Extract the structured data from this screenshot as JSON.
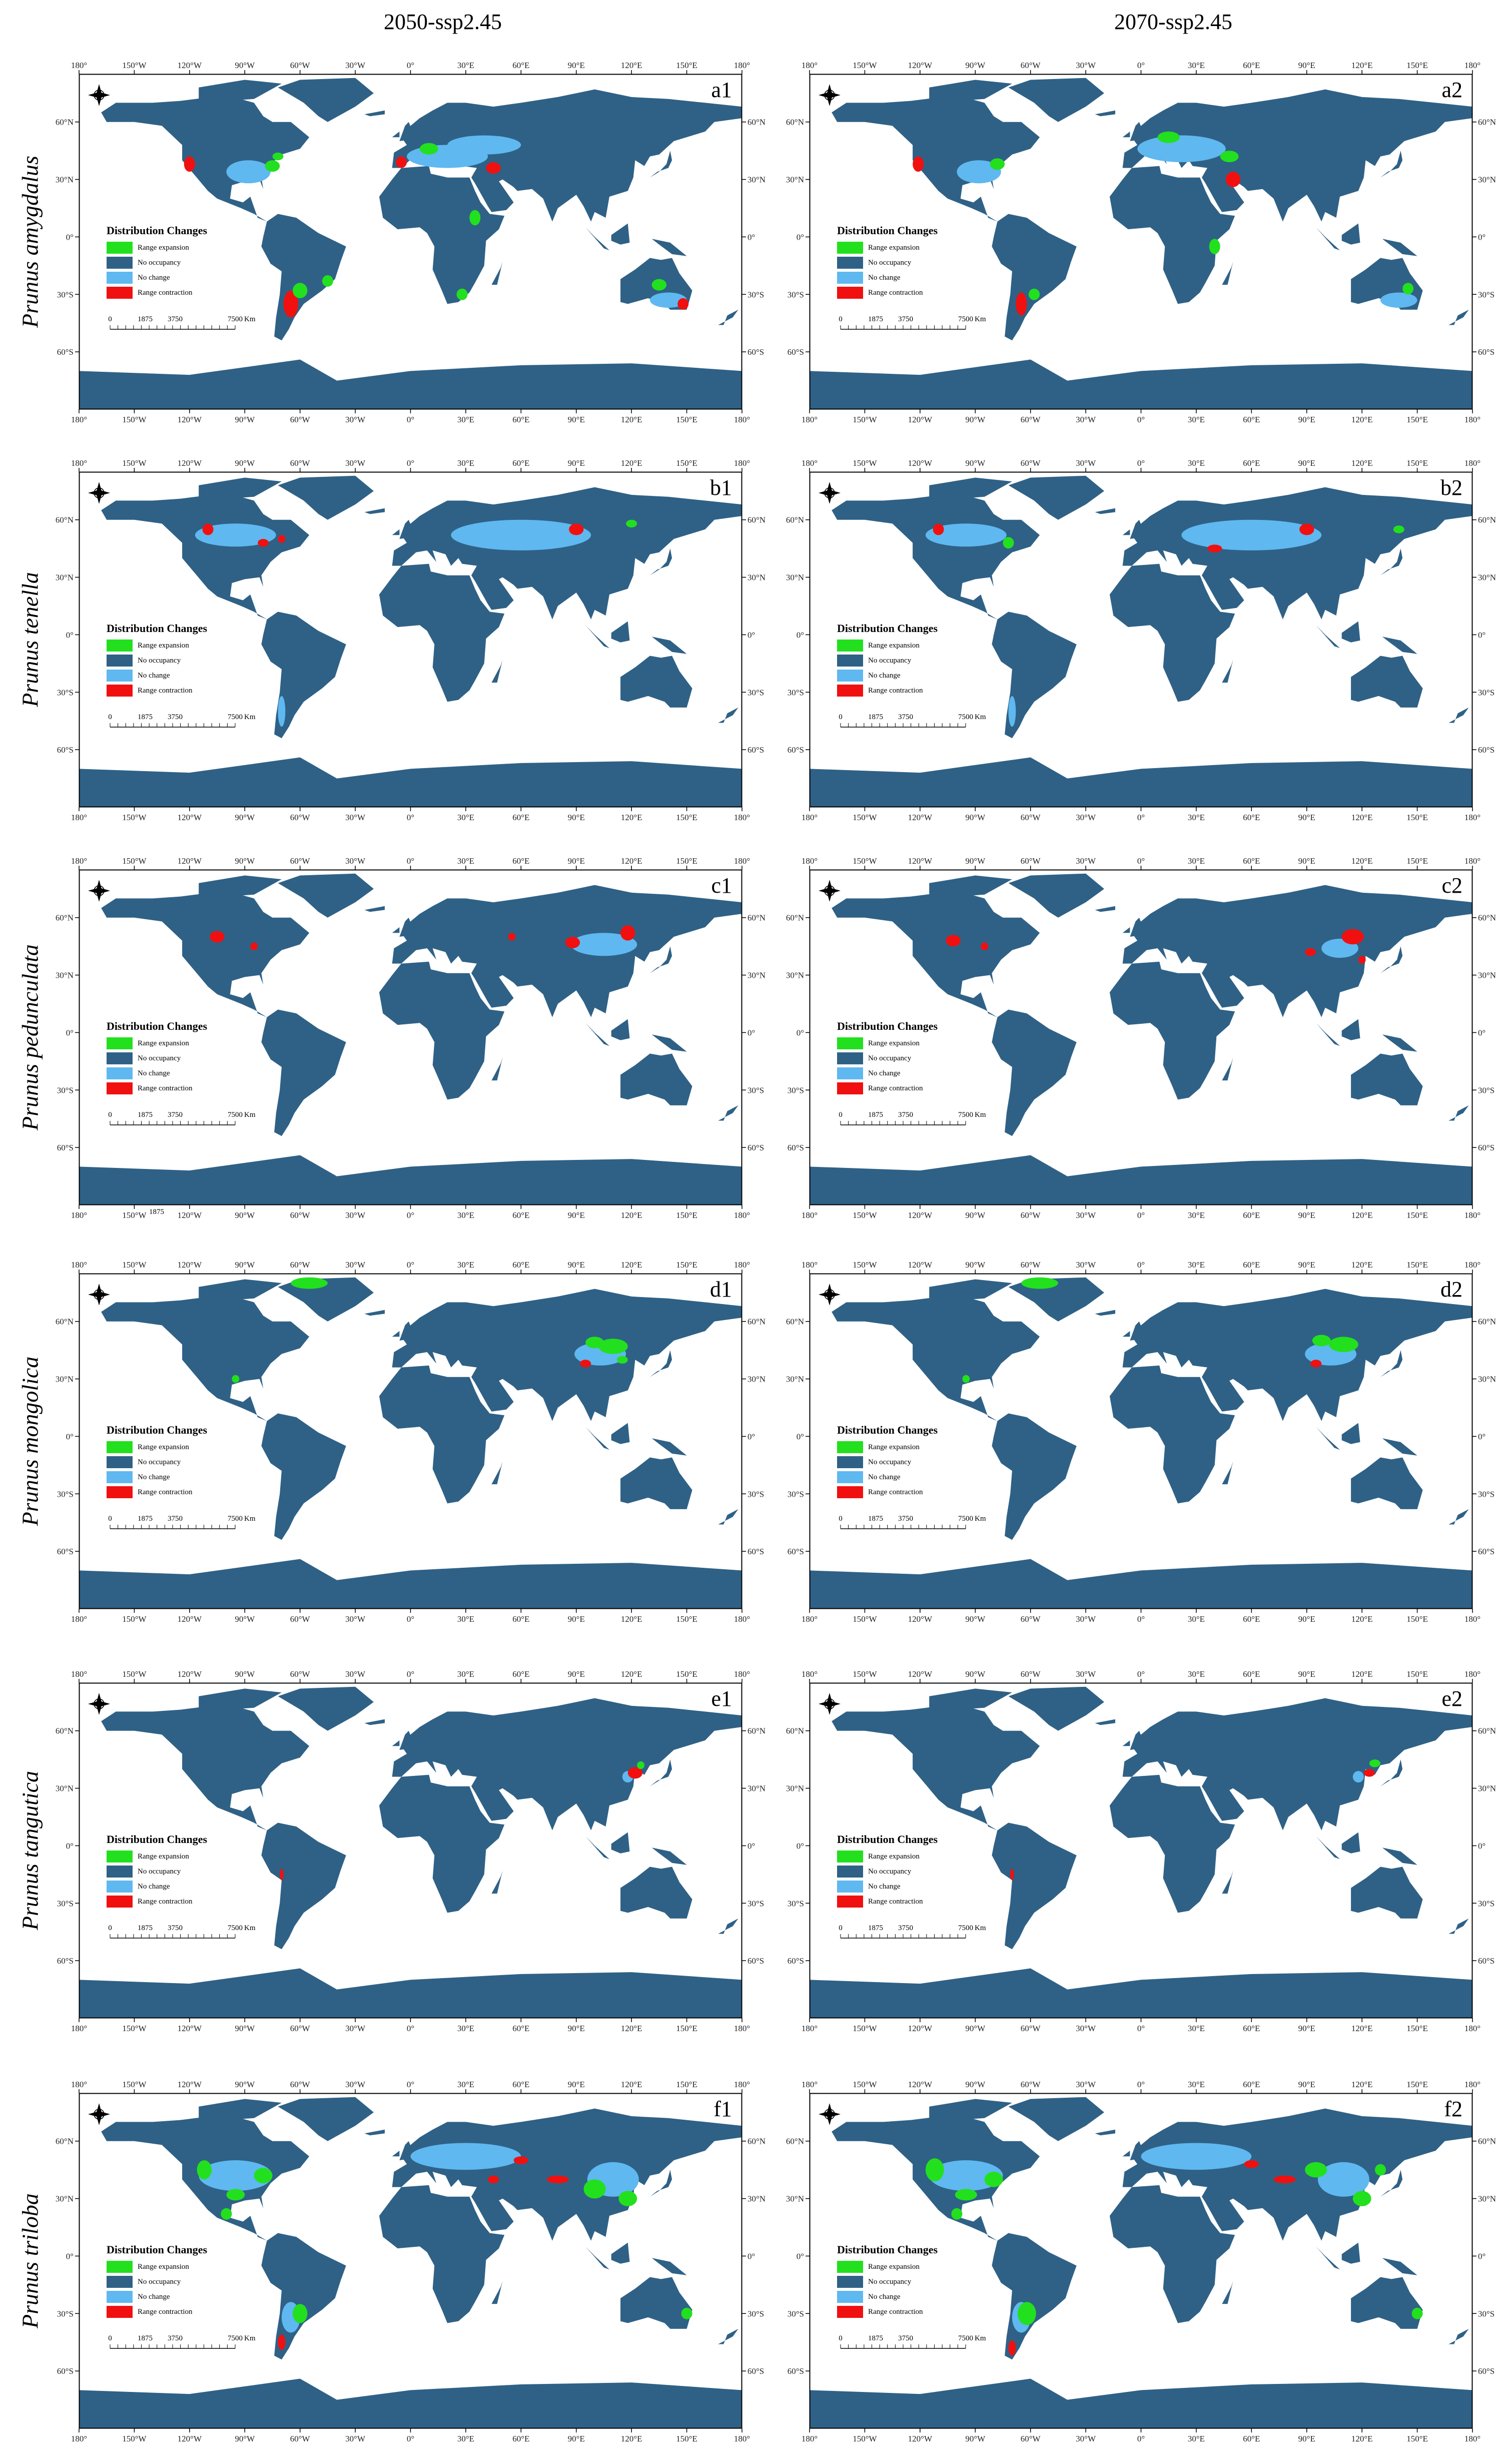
{
  "columns": [
    "2050-ssp2.45",
    "2070-ssp2.45"
  ],
  "rows": [
    {
      "species": "Prunus amygdalus",
      "labels": [
        "a1",
        "a2"
      ]
    },
    {
      "species": "Prunus tenella",
      "labels": [
        "b1",
        "b2"
      ]
    },
    {
      "species": "Prunus pedunculata",
      "labels": [
        "c1",
        "c2"
      ]
    },
    {
      "species": "Prunus mongolica",
      "labels": [
        "d1",
        "d2"
      ]
    },
    {
      "species": "Prunus tangutica",
      "labels": [
        "e1",
        "e2"
      ]
    },
    {
      "species": "Prunus triloba",
      "labels": [
        "f1",
        "f2"
      ]
    }
  ],
  "x_ticks": [
    "180°",
    "150°W",
    "120°W",
    "90°W",
    "60°W",
    "30°W",
    "0°",
    "30°E",
    "60°E",
    "90°E",
    "120°E",
    "150°E",
    "180°"
  ],
  "y_ticks": [
    "60°N",
    "30°N",
    "0°",
    "30°S",
    "60°S"
  ],
  "legend": {
    "title": "Distribution Changes",
    "items": [
      {
        "label": "Range expansion",
        "color": "#22e01e"
      },
      {
        "label": "No occupancy",
        "color": "#2f6186"
      },
      {
        "label": "No change",
        "color": "#5fb8f0"
      },
      {
        "label": "Range contraction",
        "color": "#f01010"
      }
    ]
  },
  "scale_bar": {
    "ticks": [
      "0",
      "1875",
      "3750",
      "7500"
    ],
    "unit": "Km"
  },
  "stray_text": "1875",
  "colors": {
    "land": "#2f6186",
    "ocean": "#ffffff",
    "no_change": "#5fb8f0",
    "expansion": "#22e01e",
    "contraction": "#f01010"
  }
}
